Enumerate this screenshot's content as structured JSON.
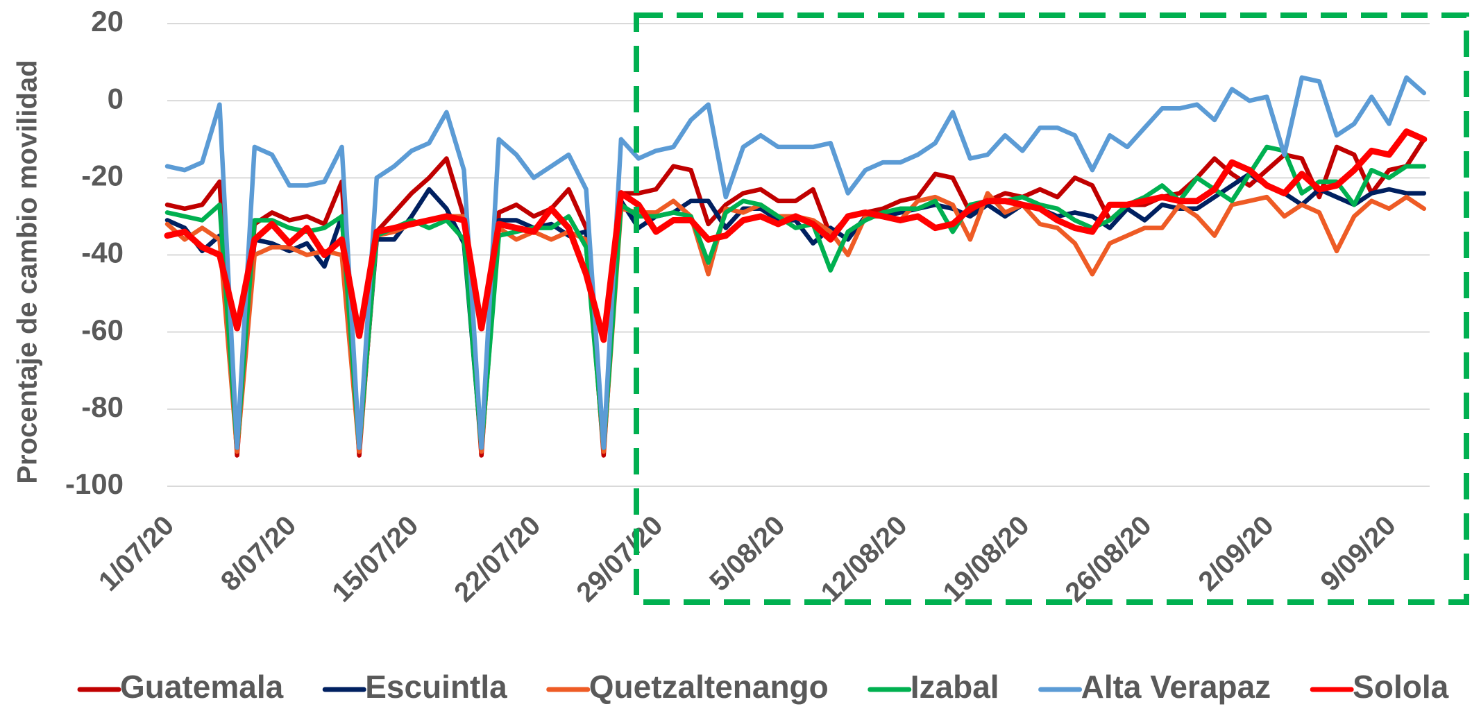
{
  "chart_data": {
    "type": "line",
    "y_label": "Procentaje de cambio movilidad",
    "categories": [
      "1/07/20",
      null,
      null,
      null,
      null,
      null,
      null,
      "8/07/20",
      null,
      null,
      null,
      null,
      null,
      null,
      "15/07/20",
      null,
      null,
      null,
      null,
      null,
      null,
      "22/07/20",
      null,
      null,
      null,
      null,
      null,
      null,
      "29/07/20",
      null,
      null,
      null,
      null,
      null,
      null,
      "5/08/20",
      null,
      null,
      null,
      null,
      null,
      null,
      "12/08/20",
      null,
      null,
      null,
      null,
      null,
      null,
      "19/08/20",
      null,
      null,
      null,
      null,
      null,
      null,
      "26/08/20",
      null,
      null,
      null,
      null,
      null,
      null,
      "2/09/20",
      null,
      null,
      null,
      null,
      null,
      null,
      "9/09/20",
      null,
      null
    ],
    "ylim": [
      -100,
      20
    ],
    "yticks": [
      -100,
      -80,
      -60,
      -40,
      -20,
      0,
      20
    ],
    "grid": true,
    "legend": "bottom",
    "series": [
      {
        "name": "Guatemala",
        "color": "#c00000",
        "values": [
          -27,
          -28,
          -27,
          -21,
          -92,
          -32,
          -29,
          -31,
          -30,
          -32,
          -21,
          -92,
          -34,
          -29,
          -24,
          -20,
          -15,
          -30,
          -92,
          -29,
          -27,
          -30,
          -28,
          -23,
          -33,
          -92,
          -24,
          -24,
          -23,
          -17,
          -18,
          -32,
          -27,
          -24,
          -23,
          -26,
          -26,
          -23,
          -35,
          -30,
          -29,
          -28,
          -26,
          -25,
          -19,
          -20,
          -29,
          -26,
          -24,
          -25,
          -23,
          -25,
          -20,
          -22,
          -31,
          -27,
          -27,
          -25,
          -24,
          -20,
          -15,
          -19,
          -22,
          -18,
          -14,
          -15,
          -25,
          -12,
          -14,
          -24,
          -18,
          -17,
          -10
        ]
      },
      {
        "name": "Escuintla",
        "color": "#002060",
        "values": [
          -31,
          -33,
          -39,
          -35,
          -90,
          -36,
          -37,
          -39,
          -37,
          -43,
          -30,
          -90,
          -36,
          -36,
          -30,
          -23,
          -28,
          -37,
          -90,
          -31,
          -31,
          -33,
          -32,
          -35,
          -34,
          -90,
          -26,
          -33,
          -30,
          -29,
          -26,
          -26,
          -33,
          -28,
          -28,
          -31,
          -31,
          -37,
          -33,
          -36,
          -30,
          -30,
          -29,
          -28,
          -27,
          -28,
          -30,
          -27,
          -30,
          -27,
          -28,
          -30,
          -29,
          -30,
          -33,
          -28,
          -31,
          -27,
          -28,
          -28,
          -25,
          -22,
          -19,
          -22,
          -24,
          -27,
          -23,
          -25,
          -27,
          -24,
          -23,
          -24,
          -24
        ]
      },
      {
        "name": "Quetzaltenango",
        "color": "#ee5b25",
        "values": [
          -32,
          -36,
          -33,
          -36,
          -91,
          -40,
          -38,
          -38,
          -40,
          -39,
          -40,
          -91,
          -35,
          -34,
          -32,
          -31,
          -30,
          -30,
          -91,
          -33,
          -36,
          -34,
          -36,
          -34,
          -36,
          -91,
          -28,
          -29,
          -29,
          -26,
          -30,
          -45,
          -28,
          -29,
          -27,
          -30,
          -30,
          -31,
          -34,
          -40,
          -30,
          -30,
          -31,
          -26,
          -25,
          -27,
          -36,
          -24,
          -29,
          -27,
          -32,
          -33,
          -37,
          -45,
          -37,
          -35,
          -33,
          -33,
          -27,
          -30,
          -35,
          -27,
          -26,
          -25,
          -30,
          -27,
          -29,
          -39,
          -30,
          -26,
          -28,
          -25,
          -28
        ]
      },
      {
        "name": "Izabal",
        "color": "#00b050",
        "values": [
          -29,
          -30,
          -31,
          -27,
          -90,
          -31,
          -31,
          -33,
          -34,
          -33,
          -30,
          -90,
          -35,
          -33,
          -31,
          -33,
          -31,
          -36,
          -90,
          -35,
          -34,
          -33,
          -33,
          -30,
          -38,
          -90,
          -27,
          -30,
          -30,
          -29,
          -30,
          -42,
          -29,
          -26,
          -27,
          -30,
          -33,
          -32,
          -44,
          -34,
          -31,
          -29,
          -28,
          -28,
          -26,
          -34,
          -27,
          -26,
          -26,
          -25,
          -27,
          -28,
          -31,
          -33,
          -31,
          -27,
          -25,
          -22,
          -26,
          -20,
          -23,
          -26,
          -19,
          -12,
          -13,
          -24,
          -21,
          -21,
          -27,
          -18,
          -20,
          -17,
          -17
        ]
      },
      {
        "name": "Alta Verapaz",
        "color": "#5b9bd5",
        "values": [
          -17,
          -18,
          -16,
          -1,
          -90,
          -12,
          -14,
          -22,
          -22,
          -21,
          -12,
          -90,
          -20,
          -17,
          -13,
          -11,
          -3,
          -18,
          -90,
          -10,
          -14,
          -20,
          -17,
          -14,
          -23,
          -90,
          -10,
          -15,
          -13,
          -12,
          -5,
          -1,
          -25,
          -12,
          -9,
          -12,
          -12,
          -12,
          -11,
          -24,
          -18,
          -16,
          -16,
          -14,
          -11,
          -3,
          -15,
          -14,
          -9,
          -13,
          -7,
          -7,
          -9,
          -18,
          -9,
          -12,
          -7,
          -2,
          -2,
          -1,
          -5,
          3,
          0,
          1,
          -14,
          6,
          5,
          -9,
          -6,
          1,
          -6,
          6,
          2
        ]
      },
      {
        "name": "Solola",
        "color": "#ff0000",
        "values": [
          -35,
          -34,
          -38,
          -40,
          -59,
          -36,
          -32,
          -37,
          -33,
          -40,
          -36,
          -61,
          -34,
          -33,
          -32,
          -31,
          -30,
          -31,
          -59,
          -32,
          -33,
          -34,
          -28,
          -33,
          -45,
          -62,
          -24,
          -27,
          -34,
          -31,
          -31,
          -36,
          -35,
          -31,
          -30,
          -32,
          -30,
          -32,
          -36,
          -30,
          -29,
          -30,
          -31,
          -30,
          -33,
          -32,
          -28,
          -26,
          -26,
          -27,
          -28,
          -31,
          -33,
          -34,
          -27,
          -27,
          -26,
          -25,
          -26,
          -26,
          -23,
          -16,
          -18,
          -22,
          -24,
          -19,
          -23,
          -22,
          -18,
          -13,
          -14,
          -8,
          -10
        ]
      }
    ]
  }
}
